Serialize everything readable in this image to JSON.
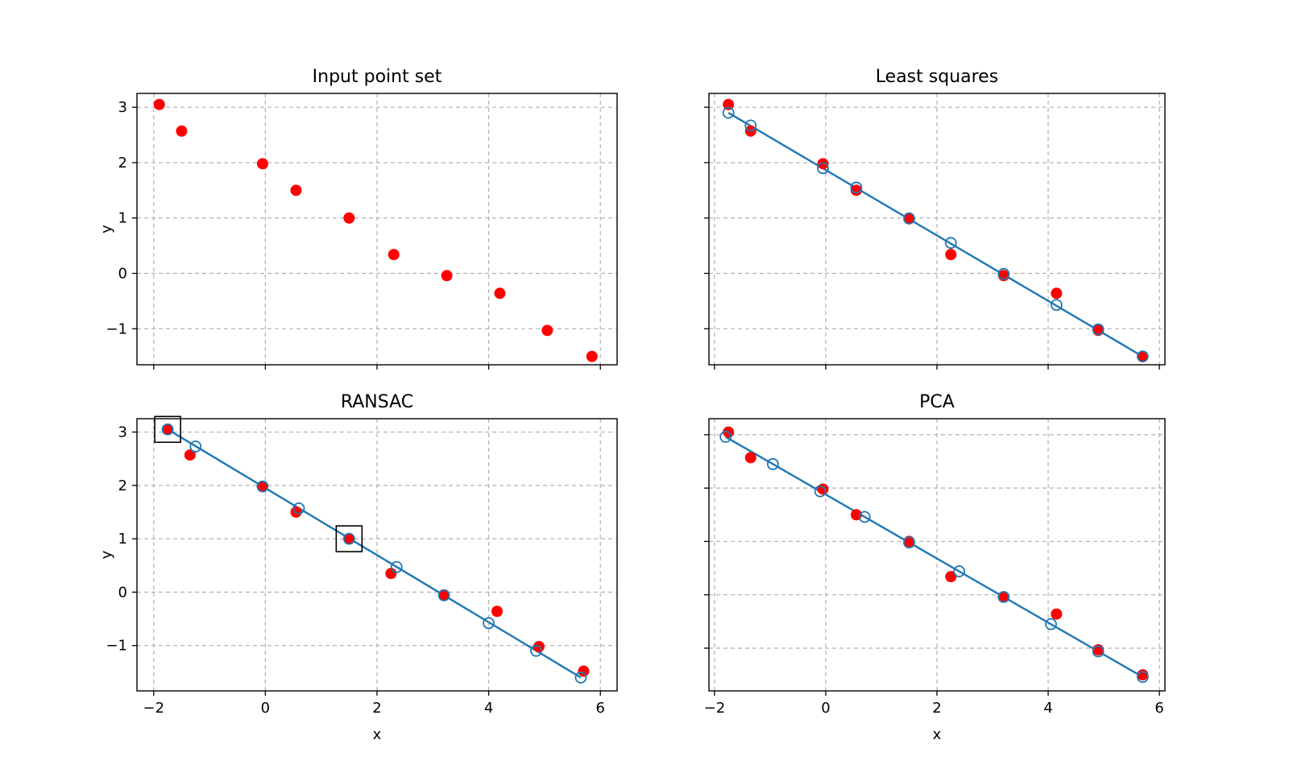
{
  "chart_data": [
    {
      "type": "scatter",
      "title": "Input point set",
      "xlabel": "",
      "ylabel": "y",
      "xlim": [
        -2.3,
        6.3
      ],
      "ylim": [
        -1.65,
        3.25
      ],
      "xticks": [
        -2,
        0,
        2,
        4,
        6
      ],
      "yticks": [
        -1,
        0,
        1,
        2,
        3
      ],
      "show_xtick_labels": false,
      "show_ytick_labels": true,
      "grid": true,
      "points": {
        "x": [
          -1.9,
          -1.5,
          -0.05,
          0.55,
          1.5,
          2.3,
          3.25,
          4.2,
          5.05,
          5.85
        ],
        "y": [
          3.05,
          2.57,
          1.98,
          1.5,
          1.0,
          0.34,
          -0.04,
          -0.36,
          -1.03,
          -1.5
        ]
      }
    },
    {
      "type": "scatter",
      "title": "Least squares",
      "xlabel": "",
      "ylabel": "",
      "xlim": [
        -2.1,
        6.1
      ],
      "ylim": [
        -1.65,
        3.25
      ],
      "xticks": [
        -2,
        0,
        2,
        4,
        6
      ],
      "yticks": [
        -1,
        0,
        1,
        2,
        3
      ],
      "show_xtick_labels": false,
      "show_ytick_labels": false,
      "grid": true,
      "points": {
        "x": [
          -1.75,
          -1.35,
          -0.05,
          0.55,
          1.5,
          2.25,
          3.2,
          4.15,
          4.9,
          5.7
        ],
        "y": [
          3.05,
          2.57,
          1.98,
          1.5,
          1.0,
          0.34,
          -0.04,
          -0.36,
          -1.03,
          -1.5
        ]
      },
      "fit_line": {
        "x": [
          -1.75,
          5.7
        ],
        "y": [
          2.9,
          -1.5
        ]
      },
      "projections": {
        "x": [
          -1.75,
          -1.35,
          -0.05,
          0.55,
          1.5,
          2.25,
          3.2,
          4.15,
          4.9,
          5.7
        ],
        "y": [
          2.9,
          2.67,
          1.9,
          1.55,
          0.99,
          0.55,
          -0.01,
          -0.57,
          -1.01,
          -1.5
        ]
      }
    },
    {
      "type": "scatter",
      "title": "RANSAC",
      "xlabel": "x",
      "ylabel": "y",
      "xlim": [
        -2.3,
        6.3
      ],
      "ylim": [
        -1.85,
        3.25
      ],
      "xticks": [
        -2,
        0,
        2,
        4,
        6
      ],
      "yticks": [
        -1,
        0,
        1,
        2,
        3
      ],
      "show_xtick_labels": true,
      "show_ytick_labels": true,
      "grid": true,
      "points": {
        "x": [
          -1.75,
          -1.35,
          -0.05,
          0.55,
          1.5,
          2.25,
          3.2,
          4.15,
          4.9,
          5.7
        ],
        "y": [
          3.05,
          2.57,
          1.98,
          1.5,
          1.0,
          0.35,
          -0.05,
          -0.36,
          -1.02,
          -1.48
        ]
      },
      "fit_line": {
        "x": [
          -1.75,
          5.65
        ],
        "y": [
          3.05,
          -1.6
        ]
      },
      "projections": {
        "x": [
          -1.75,
          -1.25,
          -0.05,
          0.6,
          1.5,
          2.35,
          3.2,
          4.0,
          4.85,
          5.65
        ],
        "y": [
          3.05,
          2.73,
          1.98,
          1.57,
          1.0,
          0.47,
          -0.06,
          -0.58,
          -1.1,
          -1.6
        ]
      },
      "samples": {
        "x": [
          -1.75,
          1.5
        ],
        "y": [
          3.05,
          1.0
        ]
      }
    },
    {
      "type": "scatter",
      "title": "PCA",
      "xlabel": "x",
      "ylabel": "",
      "xlim": [
        -2.1,
        6.1
      ],
      "ylim": [
        -1.8,
        3.3
      ],
      "xticks": [
        -2,
        0,
        2,
        4,
        6
      ],
      "yticks": [
        -1,
        0,
        1,
        2,
        3
      ],
      "show_xtick_labels": true,
      "show_ytick_labels": false,
      "grid": true,
      "points": {
        "x": [
          -1.75,
          -1.35,
          -0.05,
          0.55,
          1.5,
          2.25,
          3.2,
          4.15,
          4.9,
          5.7
        ],
        "y": [
          3.05,
          2.57,
          1.98,
          1.5,
          1.0,
          0.34,
          -0.04,
          -0.36,
          -1.03,
          -1.5
        ]
      },
      "fit_line": {
        "x": [
          -1.8,
          5.7
        ],
        "y": [
          2.96,
          -1.54
        ]
      },
      "projections": {
        "x": [
          -1.8,
          -0.95,
          -0.1,
          0.7,
          1.5,
          2.4,
          3.2,
          4.05,
          4.9,
          5.7
        ],
        "y": [
          2.96,
          2.45,
          1.94,
          1.46,
          0.98,
          0.44,
          -0.04,
          -0.55,
          -1.06,
          -1.54
        ]
      }
    }
  ]
}
